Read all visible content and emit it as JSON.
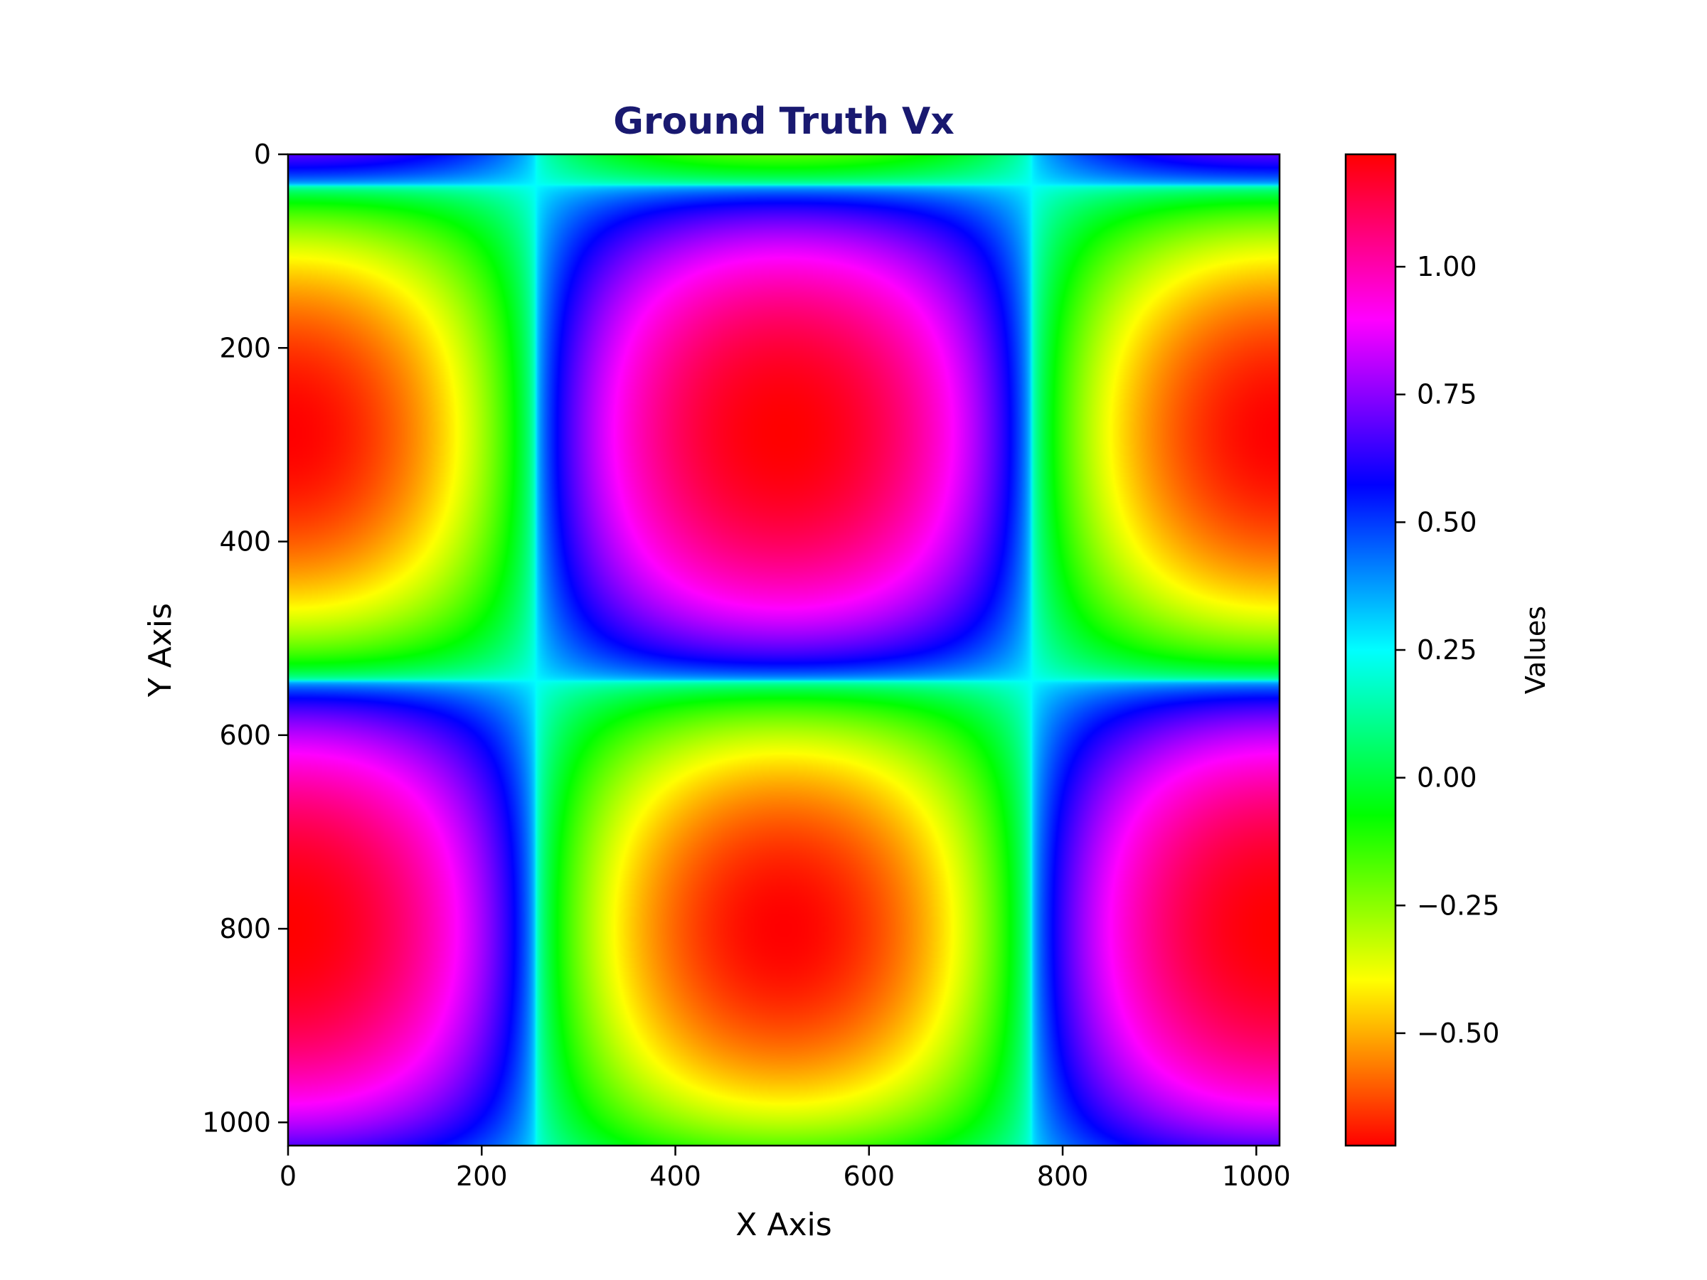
{
  "chart_data": {
    "type": "heatmap",
    "title": "Ground Truth Vx",
    "title_color": "#191970",
    "xlabel": "X Axis",
    "ylabel": "Y Axis",
    "colorbar_label": "Values",
    "colormap": "hsv",
    "xlim": [
      0,
      1024
    ],
    "ylim": [
      1024,
      0
    ],
    "x_ticks": [
      0,
      200,
      400,
      600,
      800,
      1000
    ],
    "x_tick_labels": [
      "0",
      "200",
      "400",
      "600",
      "800",
      "1000"
    ],
    "y_ticks": [
      0,
      200,
      400,
      600,
      800,
      1000
    ],
    "y_tick_labels": [
      "0",
      "200",
      "400",
      "600",
      "800",
      "1000"
    ],
    "value_range": [
      -0.72,
      1.22
    ],
    "colorbar_ticks": [
      1.0,
      0.75,
      0.5,
      0.25,
      0.0,
      -0.25,
      -0.5
    ],
    "colorbar_tick_labels": [
      "1.00",
      "0.75",
      "0.50",
      "0.25",
      "0.00",
      "−0.25",
      "−0.50"
    ],
    "extrema": [
      {
        "x": 512,
        "y": 288,
        "value": -0.72
      },
      {
        "x": 0,
        "y": 288,
        "value": 1.22
      },
      {
        "x": 1024,
        "y": 288,
        "value": 1.22
      },
      {
        "x": 512,
        "y": 800,
        "value": 1.22
      },
      {
        "x": 0,
        "y": 800,
        "value": -0.72
      },
      {
        "x": 1024,
        "y": 800,
        "value": -0.72
      }
    ]
  }
}
